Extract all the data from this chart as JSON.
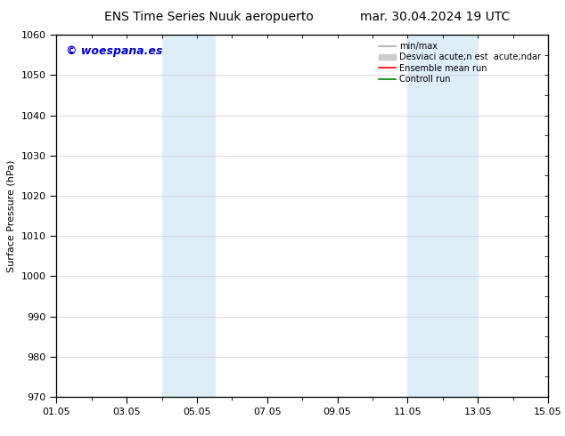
{
  "title_left": "ENS Time Series Nuuk aeropuerto",
  "title_right": "mar. 30.04.2024 19 UTC",
  "ylabel": "Surface Pressure (hPa)",
  "ylim": [
    970,
    1060
  ],
  "yticks": [
    970,
    980,
    990,
    1000,
    1010,
    1020,
    1030,
    1040,
    1050,
    1060
  ],
  "xlim_start": 0,
  "xlim_end": 14,
  "xtick_labels": [
    "01.05",
    "03.05",
    "05.05",
    "07.05",
    "09.05",
    "11.05",
    "13.05",
    "15.05"
  ],
  "xtick_positions": [
    0,
    2,
    4,
    6,
    8,
    10,
    12,
    14
  ],
  "shaded_regions": [
    {
      "x_start": 3.0,
      "x_end": 4.5,
      "color": "#ddeef9"
    },
    {
      "x_start": 10.0,
      "x_end": 12.0,
      "color": "#ddeef9"
    }
  ],
  "watermark_text": "© woespana.es",
  "watermark_color": "#0000cc",
  "legend_entries": [
    {
      "label": "min/max",
      "color": "#aaaaaa",
      "lw": 1.2,
      "type": "line"
    },
    {
      "label": "Desviaci acute;n est  acute;ndar",
      "color": "#cccccc",
      "lw": 8,
      "type": "patch"
    },
    {
      "label": "Ensemble mean run",
      "color": "red",
      "lw": 1.2,
      "type": "line"
    },
    {
      "label": "Controll run",
      "color": "green",
      "lw": 1.2,
      "type": "line"
    }
  ],
  "bg_color": "#ffffff",
  "grid_color": "#cccccc",
  "title_fontsize": 10,
  "label_fontsize": 8,
  "tick_fontsize": 8
}
